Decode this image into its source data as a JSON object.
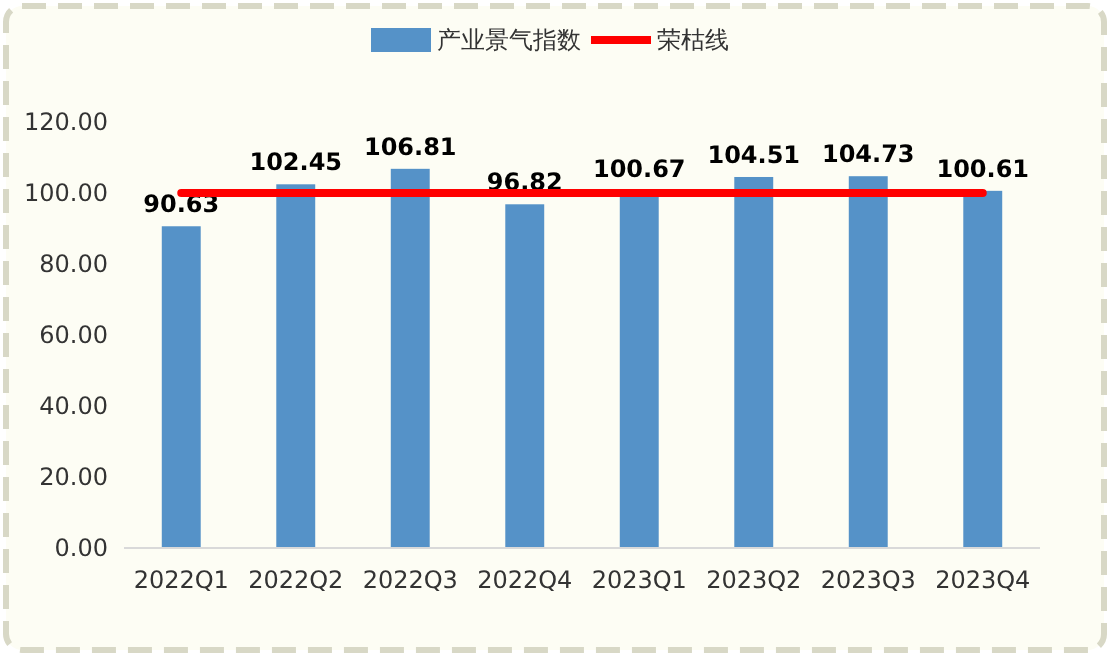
{
  "chart_data": {
    "type": "bar",
    "categories": [
      "2022Q1",
      "2022Q2",
      "2022Q3",
      "2022Q4",
      "2023Q1",
      "2023Q2",
      "2023Q3",
      "2023Q4"
    ],
    "series": [
      {
        "name": "产业景气指数",
        "color": "#5592c8",
        "values": [
          90.63,
          102.45,
          106.81,
          96.82,
          100.67,
          104.51,
          104.73,
          100.61
        ],
        "value_labels": [
          "90.63",
          "102.45",
          "106.81",
          "96.82",
          "100.67",
          "104.51",
          "104.73",
          "100.61"
        ]
      },
      {
        "name": "荣枯线",
        "type": "line",
        "color": "#ff0000",
        "values": [
          100,
          100,
          100,
          100,
          100,
          100,
          100,
          100
        ],
        "marker": "none"
      }
    ],
    "ylim": [
      0,
      120
    ],
    "yticks": [
      {
        "value": 0,
        "label": "0.00"
      },
      {
        "value": 20,
        "label": "20.00"
      },
      {
        "value": 40,
        "label": "40.00"
      },
      {
        "value": 60,
        "label": "60.00"
      },
      {
        "value": 80,
        "label": "80.00"
      },
      {
        "value": 100,
        "label": "100.00"
      },
      {
        "value": 120,
        "label": "120.00"
      }
    ],
    "grid": false,
    "legend": "top"
  }
}
